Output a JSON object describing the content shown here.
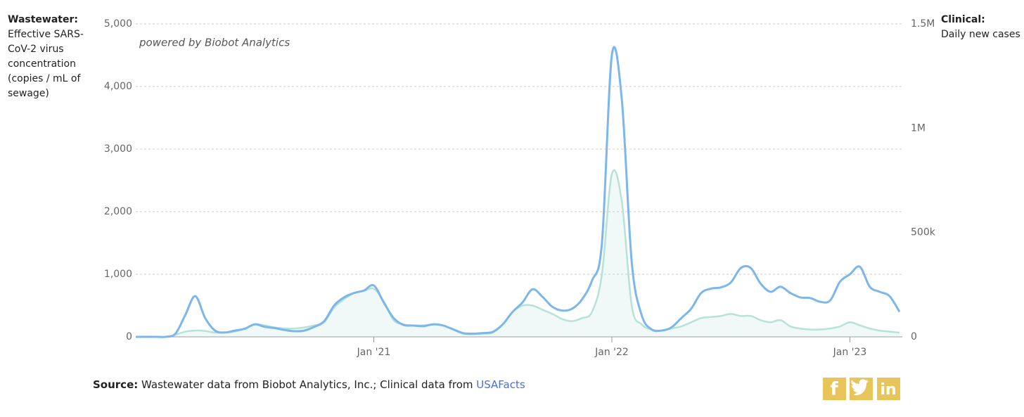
{
  "chart_data": {
    "type": "line",
    "left_axis_title": {
      "heading": "Wastewater:",
      "text": "Effective SARS-CoV-2 virus concentration (copies / mL of sewage)"
    },
    "right_axis_title": {
      "heading": "Clinical:",
      "text": "Daily new cases"
    },
    "annotation": "powered by Biobot Analytics",
    "source": {
      "label": "Source:",
      "text": "Wastewater data from Biobot Analytics, Inc.; Clinical data from",
      "link": "USAFacts"
    },
    "share_buttons": [
      "f",
      "in"
    ],
    "categories": [
      null,
      null,
      null,
      null,
      null,
      null,
      null,
      null,
      null,
      null,
      null,
      null,
      null,
      null,
      null,
      null,
      null,
      null,
      null,
      null,
      null,
      null,
      null,
      null,
      "Jan '21",
      null,
      null,
      null,
      null,
      null,
      null,
      null,
      null,
      null,
      null,
      null,
      null,
      null,
      null,
      null,
      null,
      null,
      null,
      null,
      null,
      null,
      null,
      null,
      "Jan '22",
      null,
      null,
      null,
      null,
      null,
      null,
      null,
      null,
      null,
      null,
      null,
      null,
      null,
      null,
      null,
      null,
      null,
      null,
      null,
      null,
      null,
      null,
      null,
      "Jan '23",
      null,
      null,
      null,
      null,
      null
    ],
    "series": [
      {
        "name": "Wastewater",
        "color": "#7db6ea",
        "axis": "y",
        "values": [
          0,
          0,
          0,
          0,
          50,
          350,
          650,
          300,
          100,
          70,
          100,
          130,
          200,
          160,
          140,
          110,
          90,
          100,
          160,
          250,
          500,
          630,
          700,
          740,
          820,
          550,
          300,
          190,
          180,
          170,
          200,
          180,
          120,
          60,
          50,
          60,
          80,
          200,
          400,
          550,
          760,
          640,
          480,
          420,
          450,
          600,
          900,
          1500,
          4500,
          3800,
          1200,
          350,
          120,
          100,
          150,
          300,
          450,
          700,
          770,
          790,
          870,
          1100,
          1100,
          850,
          720,
          800,
          700,
          630,
          620,
          560,
          580,
          880,
          1000,
          1120,
          800,
          720,
          650,
          400
        ]
      },
      {
        "name": "Clinical",
        "color": "#b5e3d8",
        "axis": "y2",
        "values": [
          0,
          0,
          0,
          0,
          10000,
          25000,
          30000,
          28000,
          20000,
          20000,
          25000,
          40000,
          60000,
          55000,
          45000,
          40000,
          40000,
          45000,
          55000,
          70000,
          140000,
          180000,
          210000,
          220000,
          230000,
          170000,
          80000,
          60000,
          55000,
          55000,
          60000,
          55000,
          35000,
          15000,
          12000,
          15000,
          20000,
          60000,
          120000,
          150000,
          150000,
          130000,
          110000,
          85000,
          75000,
          90000,
          120000,
          300000,
          780000,
          650000,
          150000,
          60000,
          35000,
          30000,
          40000,
          50000,
          70000,
          90000,
          95000,
          100000,
          110000,
          100000,
          100000,
          80000,
          70000,
          80000,
          50000,
          40000,
          35000,
          35000,
          40000,
          50000,
          70000,
          55000,
          40000,
          30000,
          25000,
          20000
        ]
      }
    ],
    "ylim": [
      0,
      5000
    ],
    "yticks": [
      0,
      {
        "value": 1000,
        "label": "1,000"
      },
      {
        "value": 2000,
        "label": "2,000"
      },
      {
        "value": 3000,
        "label": "3,000"
      },
      {
        "value": 4000,
        "label": "4,000"
      },
      {
        "value": 5000,
        "label": "5,000"
      }
    ],
    "y2lim": [
      0,
      1500000
    ],
    "y2ticks": [
      0,
      {
        "value": 500000,
        "label": "500k"
      },
      {
        "value": 1000000,
        "label": "1M"
      },
      {
        "value": 1500000,
        "label": "1.5M"
      }
    ],
    "grid": true
  }
}
